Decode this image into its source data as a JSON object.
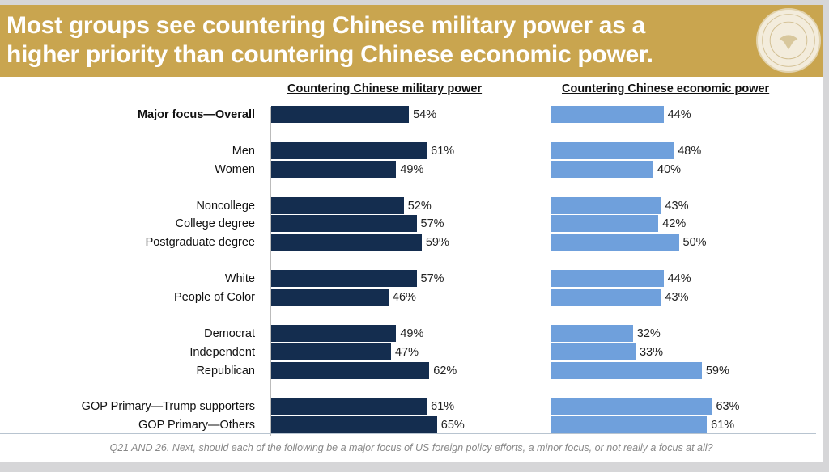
{
  "title_line1": "Most groups see countering Chinese military power as a",
  "title_line2": "higher priority than countering Chinese economic power.",
  "footnote": "Q21 AND 26. Next, should each of the following be a major focus of US foreign policy efforts, a minor focus, or not really a focus at all?",
  "colors": {
    "military": "#142d4f",
    "economic": "#6fa0dc",
    "header": "#c9a54f"
  },
  "chart_data": {
    "type": "bar",
    "orientation": "horizontal",
    "unit": "%",
    "categories": [
      "Major focus—Overall",
      "Men",
      "Women",
      "Noncollege",
      "College degree",
      "Postgraduate degree",
      "White",
      "People of Color",
      "Democrat",
      "Independent",
      "Republican",
      "GOP Primary—Trump supporters",
      "GOP Primary—Others"
    ],
    "groups": [
      0,
      1,
      1,
      2,
      2,
      2,
      3,
      3,
      4,
      4,
      4,
      5,
      5
    ],
    "series": [
      {
        "name": "Countering Chinese military power",
        "values": [
          54,
          61,
          49,
          52,
          57,
          59,
          57,
          46,
          49,
          47,
          62,
          61,
          65
        ]
      },
      {
        "name": "Countering Chinese economic power",
        "values": [
          44,
          48,
          40,
          43,
          42,
          50,
          44,
          43,
          32,
          33,
          59,
          63,
          61
        ]
      }
    ]
  }
}
